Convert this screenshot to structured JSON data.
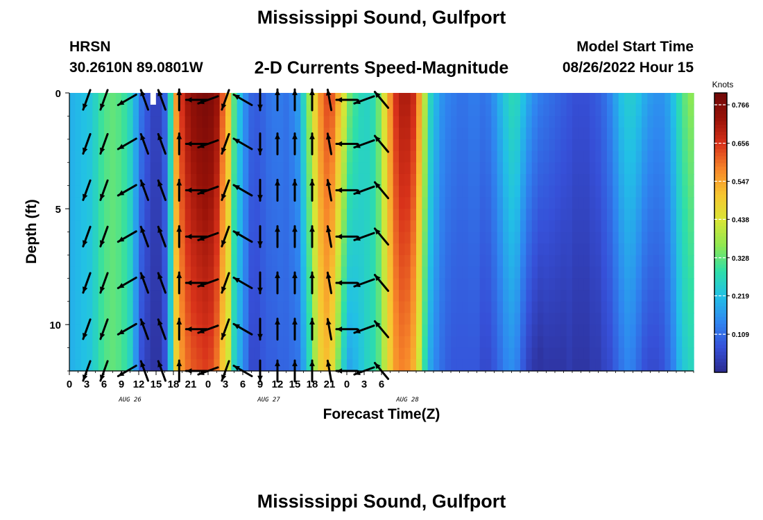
{
  "header": {
    "title": "Mississippi Sound, Gulfport",
    "station": "HRSN",
    "coords": "30.2610N  89.0801W",
    "chart_title": "2-D Currents Speed-Magnitude",
    "model_start_label": "Model Start Time",
    "model_start_time": "08/26/2022 Hour 15",
    "bottom_title": "Mississippi Sound, Gulfport"
  },
  "colors": {
    "scale": [
      "#2b2a8e",
      "#3650d8",
      "#2f86f0",
      "#22c0e6",
      "#2edfa8",
      "#8fe852",
      "#d8e636",
      "#f7c630",
      "#f7872a",
      "#d8321a",
      "#981208",
      "#700808"
    ],
    "arrow": "#000000",
    "now_marker": "#ffffff"
  },
  "chart_data": {
    "type": "heatmap",
    "xlabel": "Forecast Time(Z)",
    "ylabel": "Depth (ft)",
    "xlim": [
      0,
      108
    ],
    "ylim": [
      0,
      12
    ],
    "x_ticks": [
      "0",
      "3",
      "6",
      "9",
      "12",
      "15",
      "18",
      "21",
      "0",
      "3",
      "6",
      "9",
      "12",
      "15",
      "18",
      "21",
      "0",
      "3",
      "6"
    ],
    "x_tick_hours": [
      0,
      3,
      6,
      9,
      12,
      15,
      18,
      21,
      24,
      27,
      30,
      33,
      36,
      39,
      42,
      45,
      48,
      51,
      54
    ],
    "date_labels": [
      {
        "label": "AUG 26",
        "hour": 10.5
      },
      {
        "label": "AUG 27",
        "hour": 34.5
      },
      {
        "label": "AUG 28",
        "hour": 58.5
      }
    ],
    "y_ticks": [
      "0",
      "5",
      "10"
    ],
    "y_tick_values": [
      0,
      5,
      10
    ],
    "colorbar": {
      "title": "Knots",
      "ticks": [
        "0.766",
        "0.656",
        "0.547",
        "0.438",
        "0.328",
        "0.219",
        "0.109"
      ],
      "tick_values": [
        0.766,
        0.656,
        0.547,
        0.438,
        0.328,
        0.219,
        0.109
      ],
      "range": [
        0,
        0.8
      ]
    },
    "now_marker_hour": 14.5,
    "time_start": 0,
    "time_step": 1,
    "depth_levels": [
      0,
      0.5,
      1,
      1.5,
      2,
      2.5,
      3,
      3.5,
      4,
      4.5,
      5,
      5.5,
      6,
      6.5,
      7,
      7.5,
      8,
      8.5,
      9,
      9.5,
      10,
      10.5,
      11,
      11.5
    ],
    "column_speeds": [
      0.2,
      0.21,
      0.22,
      0.23,
      0.26,
      0.3,
      0.32,
      0.33,
      0.32,
      0.3,
      0.26,
      0.19,
      0.12,
      0.08,
      0.05,
      0.05,
      0.1,
      0.28,
      0.56,
      0.66,
      0.72,
      0.75,
      0.77,
      0.78,
      0.77,
      0.73,
      0.62,
      0.52,
      0.32,
      0.22,
      0.15,
      0.1,
      0.09,
      0.1,
      0.12,
      0.13,
      0.13,
      0.12,
      0.14,
      0.17,
      0.26,
      0.37,
      0.48,
      0.58,
      0.63,
      0.62,
      0.54,
      0.44,
      0.34,
      0.3,
      0.27,
      0.26,
      0.28,
      0.34,
      0.45,
      0.57,
      0.66,
      0.7,
      0.7,
      0.67,
      0.56,
      0.4,
      0.26,
      0.2,
      0.16,
      0.14,
      0.13,
      0.12,
      0.12,
      0.13,
      0.13,
      0.12,
      0.13,
      0.16,
      0.2,
      0.24,
      0.27,
      0.26,
      0.22,
      0.18,
      0.15,
      0.13,
      0.12,
      0.11,
      0.1,
      0.09,
      0.08,
      0.07,
      0.07,
      0.07,
      0.08,
      0.09,
      0.11,
      0.14,
      0.18,
      0.22,
      0.24,
      0.24,
      0.22,
      0.19,
      0.17,
      0.16,
      0.16,
      0.18,
      0.22,
      0.28,
      0.33,
      0.36,
      0.34
    ],
    "column_depth_trend": [
      0,
      0,
      0,
      0,
      0,
      0,
      0,
      0,
      0,
      0,
      0,
      -0.03,
      -0.05,
      -0.04,
      -0.03,
      -0.03,
      -0.03,
      -0.05,
      -0.08,
      -0.1,
      -0.12,
      -0.13,
      -0.14,
      -0.14,
      -0.14,
      -0.14,
      -0.12,
      -0.1,
      -0.06,
      -0.03,
      -0.02,
      -0.04,
      -0.03,
      -0.02,
      -0.03,
      -0.04,
      -0.03,
      -0.02,
      -0.03,
      -0.05,
      -0.08,
      -0.1,
      -0.1,
      -0.1,
      -0.12,
      -0.16,
      -0.2,
      -0.2,
      -0.16,
      -0.1,
      -0.04,
      0,
      0,
      -0.02,
      -0.05,
      -0.08,
      -0.1,
      -0.12,
      -0.13,
      -0.14,
      -0.14,
      -0.12,
      -0.08,
      -0.06,
      -0.05,
      -0.05,
      -0.05,
      -0.04,
      -0.04,
      -0.05,
      -0.05,
      -0.06,
      -0.07,
      -0.08,
      -0.09,
      -0.1,
      -0.12,
      -0.13,
      -0.14,
      -0.14,
      -0.13,
      -0.12,
      -0.1,
      -0.09,
      -0.08,
      -0.07,
      -0.05,
      -0.05,
      -0.05,
      -0.05,
      -0.05,
      -0.06,
      -0.06,
      -0.08,
      -0.09,
      -0.1,
      -0.1,
      -0.11,
      -0.12,
      -0.12,
      -0.11,
      -0.1,
      -0.09,
      -0.08,
      -0.08,
      -0.08,
      -0.09,
      -0.1,
      -0.1
    ],
    "vector_hours": [
      3,
      6,
      10,
      13,
      16,
      19,
      22,
      24,
      27,
      30,
      33,
      36,
      39,
      42,
      45,
      48,
      51,
      54
    ],
    "vector_depths": [
      0.3,
      2.2,
      4.2,
      6.2,
      8.2,
      10.2,
      12
    ],
    "vector_angles_deg": [
      200,
      200,
      240,
      340,
      340,
      0,
      270,
      250,
      200,
      300,
      180,
      0,
      0,
      0,
      350,
      270,
      250,
      320
    ],
    "vector_length_scale": 1.0
  }
}
